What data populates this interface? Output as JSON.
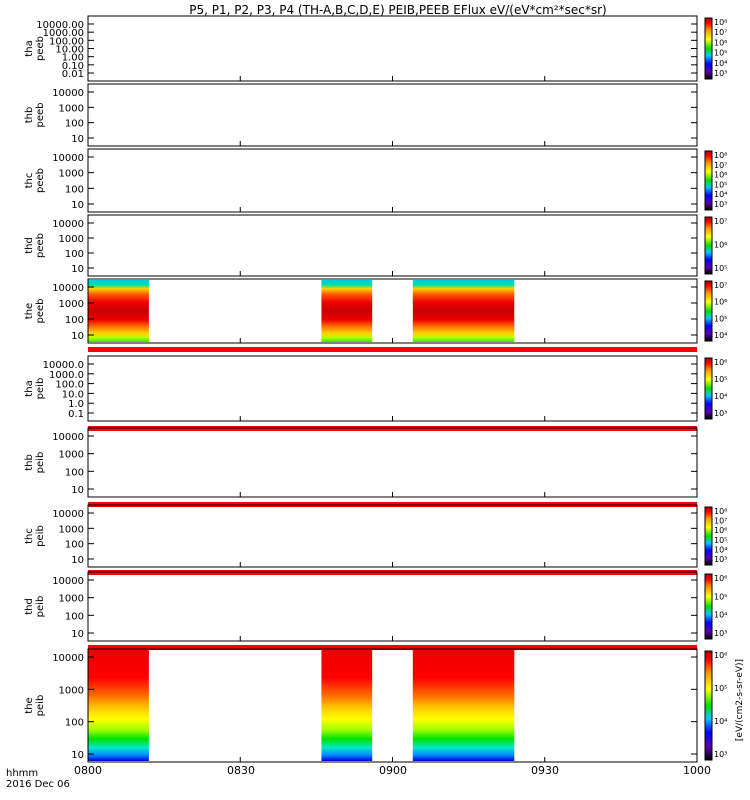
{
  "title": "P5, P1, P2, P3, P4 (TH-A,B,C,D,E) PEIB,PEEB EFlux eV/(eV*cm²*sec*sr)",
  "x_axis": {
    "ticks": [
      "0800",
      "0830",
      "0900",
      "0930",
      "1000"
    ],
    "corner_label_1": "hhmm",
    "corner_label_2": "2016 Dec 06"
  },
  "colorbar_unit_label": "[eV/(cm2-s-sr-eV)]",
  "colors": {
    "no_data": "#ffffff",
    "yellow_strip": "#ffff00",
    "red_strip": "#ff0000"
  },
  "chart_data": [
    {
      "type": "heatmap",
      "probe": "tha",
      "product": "peeb",
      "ylabel": "tha peeb",
      "yticks": [
        "10000.00",
        "1000.00",
        "100.00",
        "10.00",
        "1.00",
        "0.10",
        "0.01"
      ],
      "colorbar_ticks": [
        "10⁸",
        "10⁷",
        "10⁶",
        "10⁵",
        "10⁴",
        "10³"
      ],
      "data_segments": []
    },
    {
      "type": "heatmap",
      "probe": "thb",
      "product": "peeb",
      "ylabel": "thb peeb",
      "yticks": [
        "10000",
        "1000",
        "100",
        "10"
      ],
      "colorbar_ticks": [],
      "data_segments": []
    },
    {
      "type": "heatmap",
      "probe": "thc",
      "product": "peeb",
      "ylabel": "thc peeb",
      "yticks": [
        "10000",
        "1000",
        "100",
        "10"
      ],
      "colorbar_ticks": [
        "10⁸",
        "10⁷",
        "10⁶",
        "10⁵",
        "10⁴",
        "10³"
      ],
      "data_segments": []
    },
    {
      "type": "heatmap",
      "probe": "thd",
      "product": "peeb",
      "ylabel": "thd peeb",
      "yticks": [
        "10000",
        "1000",
        "100",
        "10"
      ],
      "colorbar_ticks": [
        "10⁷",
        "10⁶",
        "10⁵"
      ],
      "data_segments": []
    },
    {
      "type": "heatmap",
      "probe": "the",
      "product": "peeb",
      "ylabel": "the peeb",
      "yticks": [
        "10000",
        "1000",
        "100",
        "10"
      ],
      "colorbar_ticks": [
        "10⁷",
        "10⁶",
        "10⁵",
        "10⁴"
      ],
      "data_segments": [
        {
          "start": "08:00",
          "end": "08:12",
          "peak_energy_eV": 400
        },
        {
          "start": "08:46",
          "end": "08:56",
          "peak_energy_eV": 400
        },
        {
          "start": "09:04",
          "end": "09:24",
          "peak_energy_eV": 400
        }
      ]
    },
    {
      "type": "heatmap",
      "probe": "tha",
      "product": "peib",
      "ylabel": "tha peib",
      "yticks": [
        "10000.0",
        "1000.0",
        "100.0",
        "10.0",
        "1.0",
        "0.1"
      ],
      "colorbar_ticks": [
        "10⁶",
        "10⁵",
        "10⁴",
        "10³"
      ],
      "data_segments": []
    },
    {
      "type": "heatmap",
      "probe": "thb",
      "product": "peib",
      "ylabel": "thb peib",
      "yticks": [
        "10000",
        "1000",
        "100",
        "10"
      ],
      "colorbar_ticks": [],
      "data_segments": []
    },
    {
      "type": "heatmap",
      "probe": "thc",
      "product": "peib",
      "ylabel": "thc peib",
      "yticks": [
        "10000",
        "1000",
        "100",
        "10"
      ],
      "colorbar_ticks": [
        "10⁸",
        "10⁷",
        "10⁶",
        "10⁵",
        "10⁴",
        "10³"
      ],
      "data_segments": []
    },
    {
      "type": "heatmap",
      "probe": "thd",
      "product": "peib",
      "ylabel": "thd peib",
      "yticks": [
        "10000",
        "1000",
        "100",
        "10"
      ],
      "colorbar_ticks": [
        "10⁶",
        "10⁵",
        "10⁴",
        "10³"
      ],
      "data_segments": []
    },
    {
      "type": "heatmap",
      "probe": "the",
      "product": "peib",
      "ylabel": "the peib",
      "yticks": [
        "10000",
        "1000",
        "100",
        "10"
      ],
      "colorbar_ticks": [
        "10⁶",
        "10⁵",
        "10⁴",
        "10³"
      ],
      "data_segments": [
        {
          "start": "08:00",
          "end": "08:12",
          "peak_energy_eV": 3000
        },
        {
          "start": "08:46",
          "end": "08:56",
          "peak_energy_eV": 3000
        },
        {
          "start": "09:04",
          "end": "09:24",
          "peak_energy_eV": 3000
        }
      ]
    }
  ]
}
